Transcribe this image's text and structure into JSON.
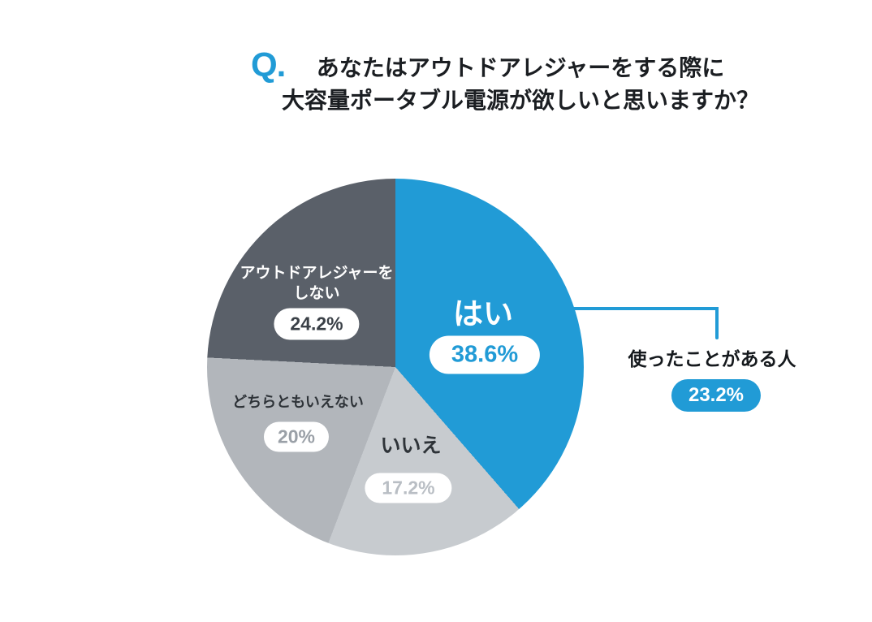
{
  "page": {
    "background": "#ffffff"
  },
  "header": {
    "q_mark": "Q.",
    "title_lines": [
      "あなたはアウトドアレジャーをする際に",
      "大容量ポータブル電源が欲しいと思いますか？"
    ]
  },
  "chart_data": {
    "type": "pie",
    "title": "あなたはアウトドアレジャーをする際に大容量ポータブル電源が欲しいと思いますか？",
    "direction": "clockwise",
    "start_angle_deg": 0,
    "legend_position": "inside",
    "slices": [
      {
        "label": "はい",
        "value": 38.6,
        "display": "38.6%",
        "color": "#219bd6"
      },
      {
        "label": "いいえ",
        "value": 17.2,
        "display": "17.2%",
        "color": "#c7cbcf"
      },
      {
        "label": "どちらともいえない",
        "value": 20,
        "display": "20%",
        "color": "#b2b6bb"
      },
      {
        "label": "アウトドアレジャーをしない",
        "value": 24.2,
        "display": "24.2%",
        "color": "#5a6069",
        "label_lines": [
          "アウトドアレジャーを",
          "しない"
        ]
      }
    ],
    "annotation": {
      "label": "使ったことがある人",
      "value": 23.2,
      "display": "23.2%",
      "target_slice": "はい"
    }
  },
  "colors": {
    "accent_blue": "#219bd6",
    "pill_background": "#ffffff",
    "title_text": "#1b1e22"
  }
}
